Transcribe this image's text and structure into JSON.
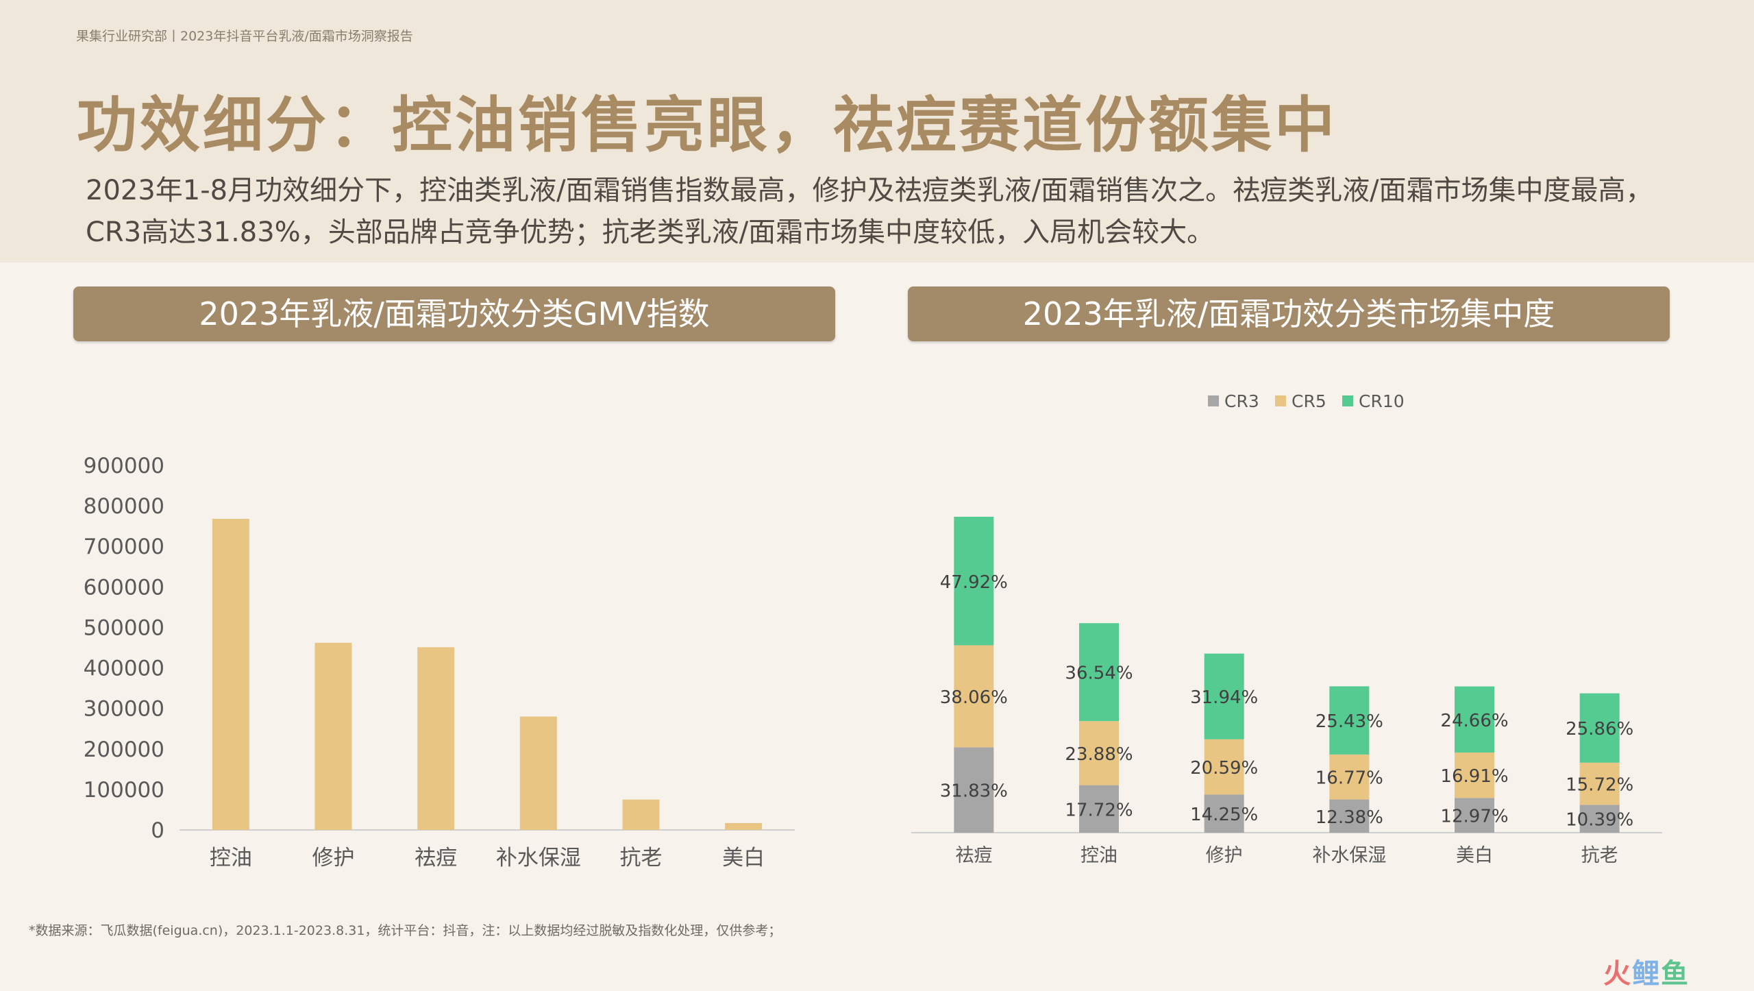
{
  "header": {
    "breadcrumb": "果集行业研究部丨2023年抖音平台乳液/面霜市场洞察报告",
    "title": "功效细分：控油销售亮眼，祛痘赛道份额集中",
    "summary": "2023年1-8月功效细分下，控油类乳液/面霜销售指数最高，修护及祛痘类乳液/面霜销售次之。祛痘类乳液/面霜市场集中度最高，CR3高达31.83%，头部品牌占竞争优势；抗老类乳液/面霜市场集中度较低，入局机会较大。"
  },
  "panels": {
    "left_title": "2023年乳液/面霜功效分类GMV指数",
    "right_title": "2023年乳液/面霜功效分类市场集中度"
  },
  "chart_data": [
    {
      "type": "bar",
      "categories": [
        "控油",
        "修护",
        "祛痘",
        "补水保湿",
        "抗老",
        "美白"
      ],
      "values": [
        768000,
        462000,
        451000,
        280000,
        75000,
        17000
      ],
      "ylim": [
        0,
        900000
      ],
      "yticks": [
        0,
        100000,
        200000,
        300000,
        400000,
        500000,
        600000,
        700000,
        800000,
        900000
      ],
      "grid": false,
      "color": "#e8c583"
    },
    {
      "type": "bar",
      "stacked": true,
      "categories": [
        "祛痘",
        "控油",
        "修护",
        "补水保湿",
        "美白",
        "抗老"
      ],
      "series": [
        {
          "name": "CR3",
          "values": [
            31.83,
            17.72,
            14.25,
            12.38,
            12.97,
            10.39
          ],
          "labels": [
            "31.83%",
            "17.72%",
            "14.25%",
            "12.38%",
            "12.97%",
            "10.39%"
          ],
          "color": "#a6a6a6"
        },
        {
          "name": "CR5",
          "values": [
            38.06,
            23.88,
            20.59,
            16.77,
            16.91,
            15.72
          ],
          "labels": [
            "38.06%",
            "23.88%",
            "20.59%",
            "16.77%",
            "16.91%",
            "15.72%"
          ],
          "color": "#e8c583"
        },
        {
          "name": "CR10",
          "values": [
            47.92,
            36.54,
            31.94,
            25.43,
            24.66,
            25.86
          ],
          "labels": [
            "47.92%",
            "36.54%",
            "31.94%",
            "25.43%",
            "24.66%",
            "25.86%"
          ],
          "color": "#55cb92"
        }
      ],
      "legend": "top-center",
      "grid": false
    }
  ],
  "footnote": "*数据来源：飞瓜数据(feigua.cn)，2023.1.1-2023.8.31，统计平台：抖音，注：以上数据均经过脱敏及指数化处理，仅供参考；",
  "watermark": {
    "part1": "火",
    "part2": "鲤",
    "part3": "鱼"
  }
}
